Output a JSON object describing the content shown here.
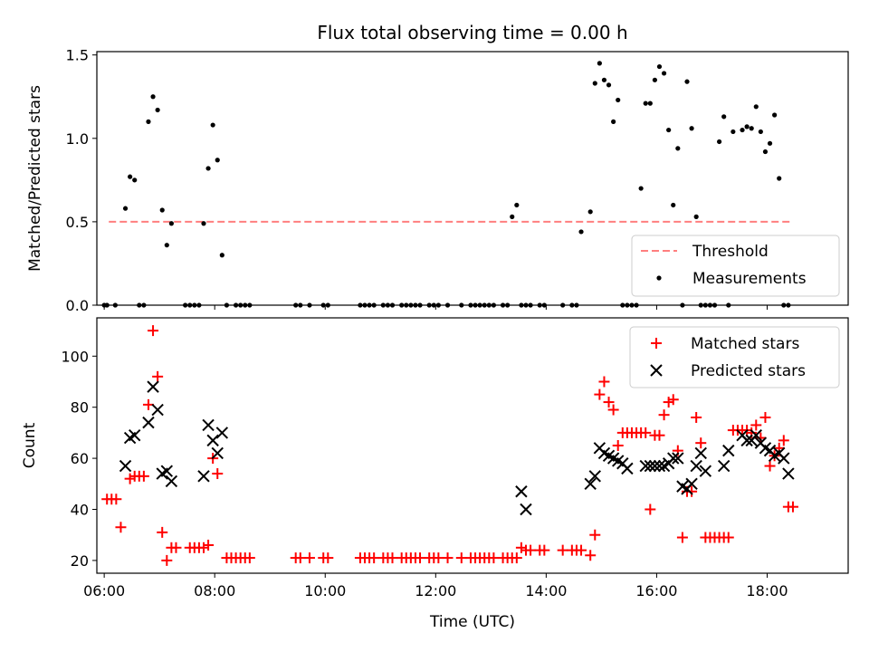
{
  "figure": {
    "title": "Flux total observing time = 0.00 h"
  },
  "chart_data": [
    {
      "type": "scatter",
      "ylabel": "Matched/Predicted stars",
      "ylim": [
        0,
        1.52
      ],
      "yticks": [
        0,
        0.5,
        1.0,
        1.5
      ],
      "ytick_labels": [
        "0.0",
        "0.5",
        "1.0",
        "1.5"
      ],
      "xlim": [
        "05:52",
        "19:28"
      ],
      "grid": false,
      "legend_position": "lower-right",
      "legend": [
        {
          "label": "Threshold",
          "style": "dashed-line",
          "color": "#ff7f7f"
        },
        {
          "label": "Measurements",
          "style": "dot",
          "color": "#000000"
        }
      ],
      "threshold": {
        "name": "Threshold",
        "value": 0.5,
        "x_start": "06:05",
        "x_end": "18:25",
        "color": "#ff7f7f"
      },
      "series": [
        {
          "name": "Measurements",
          "color": "#000000",
          "x": [
            "06:00",
            "06:03",
            "06:12",
            "06:23",
            "06:28",
            "06:33",
            "06:38",
            "06:43",
            "06:48",
            "06:53",
            "06:58",
            "07:03",
            "07:08",
            "07:13",
            "07:28",
            "07:33",
            "07:38",
            "07:43",
            "07:48",
            "07:53",
            "07:58",
            "08:03",
            "08:08",
            "08:13",
            "08:23",
            "08:28",
            "08:33",
            "08:38",
            "09:28",
            "09:33",
            "09:43",
            "09:58",
            "10:03",
            "10:38",
            "10:43",
            "10:48",
            "10:53",
            "11:03",
            "11:08",
            "11:13",
            "11:23",
            "11:28",
            "11:33",
            "11:38",
            "11:43",
            "11:53",
            "11:58",
            "12:03",
            "12:13",
            "12:28",
            "12:38",
            "12:43",
            "12:48",
            "12:53",
            "12:58",
            "13:03",
            "13:13",
            "13:18",
            "13:23",
            "13:28",
            "13:33",
            "13:38",
            "13:43",
            "13:53",
            "13:58",
            "14:18",
            "14:28",
            "14:33",
            "14:38",
            "14:48",
            "14:53",
            "14:58",
            "15:03",
            "15:08",
            "15:13",
            "15:18",
            "15:23",
            "15:28",
            "15:33",
            "15:38",
            "15:43",
            "15:48",
            "15:53",
            "15:58",
            "16:03",
            "16:08",
            "16:13",
            "16:18",
            "16:23",
            "16:28",
            "16:33",
            "16:38",
            "16:43",
            "16:48",
            "16:53",
            "16:58",
            "17:03",
            "17:08",
            "17:13",
            "17:18",
            "17:23",
            "17:33",
            "17:38",
            "17:43",
            "17:48",
            "17:53",
            "17:58",
            "18:03",
            "18:08",
            "18:13",
            "18:18",
            "18:23"
          ],
          "y": [
            0,
            0,
            0,
            0.58,
            0.77,
            0.75,
            0,
            0,
            1.1,
            1.25,
            1.17,
            0.57,
            0.36,
            0.49,
            0,
            0,
            0,
            0,
            0.49,
            0.82,
            1.08,
            0.87,
            0.3,
            0,
            0,
            0,
            0,
            0,
            0,
            0,
            0,
            0,
            0,
            0,
            0,
            0,
            0,
            0,
            0,
            0,
            0,
            0,
            0,
            0,
            0,
            0,
            0,
            0,
            0,
            0,
            0,
            0,
            0,
            0,
            0,
            0,
            0,
            0,
            0.53,
            0.6,
            0,
            0,
            0,
            0,
            0,
            0,
            0,
            0,
            0.44,
            0.56,
            1.33,
            1.45,
            1.35,
            1.32,
            1.1,
            1.23,
            0,
            0,
            0,
            0,
            0.7,
            1.21,
            1.21,
            1.35,
            1.43,
            1.39,
            1.05,
            0.6,
            0.94,
            0,
            1.34,
            1.06,
            0.53,
            0,
            0,
            0,
            0,
            0.98,
            1.13,
            0,
            1.04,
            1.05,
            1.07,
            1.06,
            1.19,
            1.04,
            0.92,
            0.97,
            1.14,
            0.76,
            0,
            0
          ]
        }
      ]
    },
    {
      "type": "scatter",
      "ylabel": "Count",
      "xlabel": "Time (UTC)",
      "ylim": [
        15,
        115
      ],
      "yticks": [
        20,
        40,
        60,
        80,
        100
      ],
      "ytick_labels": [
        "20",
        "40",
        "60",
        "80",
        "100"
      ],
      "xlim": [
        "05:52",
        "19:28"
      ],
      "xticks": [
        "06:00",
        "08:00",
        "10:00",
        "12:00",
        "14:00",
        "16:00",
        "18:00"
      ],
      "xtick_labels": [
        "06:00",
        "08:00",
        "10:00",
        "12:00",
        "14:00",
        "16:00",
        "18:00"
      ],
      "grid": false,
      "legend_position": "upper-right",
      "legend": [
        {
          "label": "Matched stars",
          "style": "plus",
          "color": "#ff0000"
        },
        {
          "label": "Predicted stars",
          "style": "x",
          "color": "#000000"
        }
      ],
      "series": [
        {
          "name": "Matched stars",
          "marker": "plus",
          "color": "#ff0000",
          "x": [
            "06:03",
            "06:08",
            "06:13",
            "06:18",
            "06:28",
            "06:33",
            "06:38",
            "06:43",
            "06:48",
            "06:53",
            "06:58",
            "07:03",
            "07:08",
            "07:13",
            "07:18",
            "07:33",
            "07:38",
            "07:43",
            "07:48",
            "07:53",
            "07:58",
            "08:03",
            "08:13",
            "08:18",
            "08:23",
            "08:28",
            "08:33",
            "08:38",
            "09:28",
            "09:33",
            "09:43",
            "09:58",
            "10:03",
            "10:38",
            "10:43",
            "10:48",
            "10:53",
            "11:03",
            "11:08",
            "11:13",
            "11:23",
            "11:28",
            "11:33",
            "11:38",
            "11:43",
            "11:53",
            "11:58",
            "12:03",
            "12:13",
            "12:28",
            "12:38",
            "12:43",
            "12:48",
            "12:53",
            "12:58",
            "13:03",
            "13:13",
            "13:18",
            "13:23",
            "13:28",
            "13:33",
            "13:38",
            "13:43",
            "13:53",
            "13:58",
            "14:18",
            "14:28",
            "14:33",
            "14:38",
            "14:48",
            "14:53",
            "14:58",
            "15:03",
            "15:08",
            "15:13",
            "15:18",
            "15:23",
            "15:28",
            "15:33",
            "15:38",
            "15:43",
            "15:48",
            "15:53",
            "15:58",
            "16:03",
            "16:08",
            "16:13",
            "16:18",
            "16:23",
            "16:28",
            "16:33",
            "16:38",
            "16:43",
            "16:48",
            "16:53",
            "16:58",
            "17:03",
            "17:08",
            "17:13",
            "17:18",
            "17:23",
            "17:28",
            "17:33",
            "17:38",
            "17:43",
            "17:48",
            "17:53",
            "17:58",
            "18:03",
            "18:08",
            "18:13",
            "18:18",
            "18:23",
            "18:28"
          ],
          "y": [
            44,
            44,
            44,
            33,
            52,
            53,
            53,
            53,
            81,
            110,
            92,
            31,
            20,
            25,
            25,
            25,
            25,
            25,
            25,
            26,
            60,
            54,
            21,
            21,
            21,
            21,
            21,
            21,
            21,
            21,
            21,
            21,
            21,
            21,
            21,
            21,
            21,
            21,
            21,
            21,
            21,
            21,
            21,
            21,
            21,
            21,
            21,
            21,
            21,
            21,
            21,
            21,
            21,
            21,
            21,
            21,
            21,
            21,
            21,
            21,
            25,
            24,
            24,
            24,
            24,
            24,
            24,
            24,
            24,
            22,
            30,
            85,
            90,
            82,
            79,
            65,
            70,
            70,
            70,
            70,
            70,
            70,
            40,
            69,
            69,
            77,
            82,
            83,
            63,
            29,
            47,
            47,
            76,
            66,
            29,
            29,
            29,
            29,
            29,
            29,
            71,
            71,
            71,
            71,
            70,
            73,
            68,
            76,
            57,
            61,
            64,
            67,
            41,
            41
          ]
        },
        {
          "name": "Predicted stars",
          "marker": "x",
          "color": "#000000",
          "x": [
            "06:23",
            "06:28",
            "06:33",
            "06:48",
            "06:53",
            "06:58",
            "07:03",
            "07:08",
            "07:13",
            "07:48",
            "07:53",
            "07:58",
            "08:03",
            "08:08",
            "13:33",
            "13:38",
            "14:48",
            "14:53",
            "14:58",
            "15:03",
            "15:08",
            "15:13",
            "15:18",
            "15:23",
            "15:28",
            "15:48",
            "15:53",
            "15:58",
            "16:03",
            "16:08",
            "16:13",
            "16:18",
            "16:23",
            "16:28",
            "16:33",
            "16:38",
            "16:43",
            "16:48",
            "16:53",
            "17:13",
            "17:18",
            "17:33",
            "17:38",
            "17:43",
            "17:48",
            "17:53",
            "17:58",
            "18:03",
            "18:08",
            "18:13",
            "18:18",
            "18:23"
          ],
          "y": [
            57,
            68,
            69,
            74,
            88,
            79,
            54,
            55,
            51,
            53,
            73,
            67,
            62,
            70,
            47,
            40,
            50,
            53,
            64,
            62,
            61,
            60,
            59,
            58,
            56,
            57,
            57,
            57,
            57,
            57,
            58,
            60,
            60,
            49,
            48,
            50,
            57,
            62,
            55,
            57,
            63,
            69,
            67,
            67,
            69,
            66,
            64,
            63,
            61,
            62,
            60,
            54
          ]
        }
      ]
    }
  ]
}
